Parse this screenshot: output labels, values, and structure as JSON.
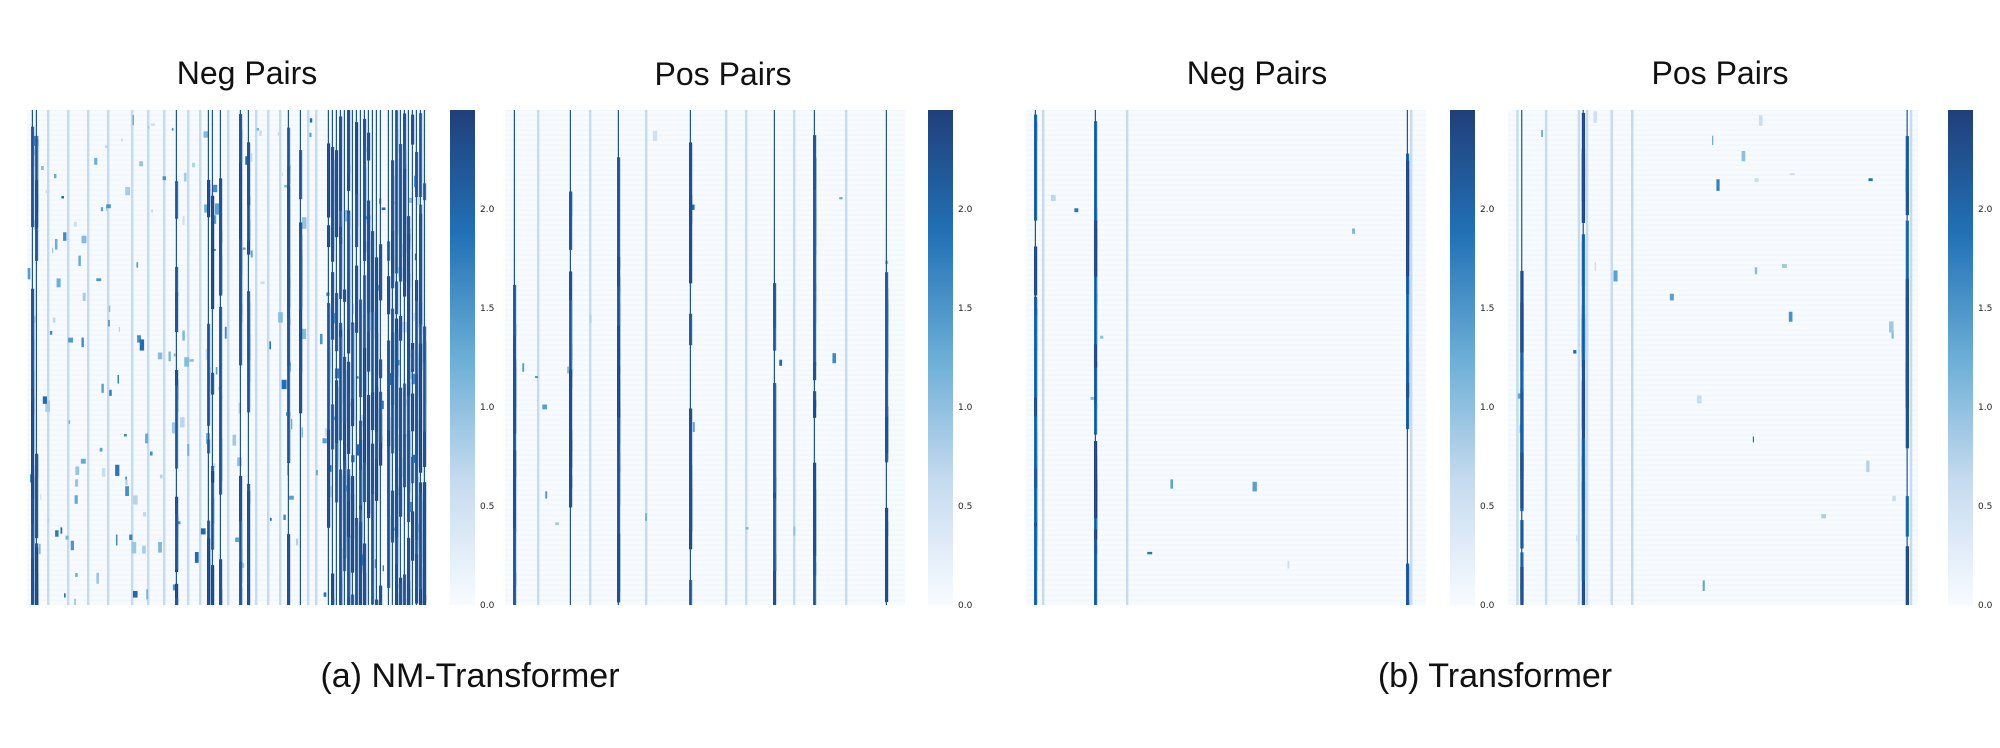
{
  "groups": [
    {
      "caption": "(a) NM-Transformer"
    },
    {
      "caption": "(b) Transformer"
    }
  ],
  "chart_data": [
    {
      "type": "heatmap",
      "title": "Neg Pairs",
      "group": "(a) NM-Transformer",
      "colormap": [
        "#f7fbff",
        "#c6dbef",
        "#6baed6",
        "#2171b5",
        "#213f7a"
      ],
      "colorbar": {
        "range": [
          0.0,
          2.5
        ],
        "ticks": [
          "0.0",
          "0.5",
          "1.0",
          "1.5",
          "2.0"
        ]
      },
      "columns": 100,
      "strong_columns": [
        1,
        2,
        37,
        45,
        46,
        48,
        53,
        55,
        65,
        68,
        75,
        76,
        77,
        78,
        79,
        80,
        81,
        82,
        83,
        84,
        85,
        86,
        87,
        88,
        90,
        91,
        92,
        93,
        94,
        95,
        96,
        97,
        98,
        99
      ],
      "light_columns": [
        5,
        10,
        15,
        20,
        26,
        30,
        34,
        40,
        43,
        50,
        57,
        60,
        63,
        70,
        72
      ],
      "noise": 0.22
    },
    {
      "type": "heatmap",
      "title": "Pos Pairs",
      "group": "(a) NM-Transformer",
      "colormap": [
        "#f7fbff",
        "#c6dbef",
        "#6baed6",
        "#2171b5",
        "#213f7a"
      ],
      "colorbar": {
        "range": [
          0.0,
          2.5
        ],
        "ticks": [
          "0.0",
          "0.5",
          "1.0",
          "1.5",
          "2.0"
        ]
      },
      "columns": 100,
      "strong_columns": [
        2,
        16,
        28,
        46,
        67,
        77,
        95
      ],
      "light_columns": [
        8,
        21,
        35,
        55,
        60,
        72,
        85
      ],
      "noise": 0.02
    },
    {
      "type": "heatmap",
      "title": "Neg Pairs",
      "group": "(b) Transformer",
      "colormap": [
        "#f7fbff",
        "#c6dbef",
        "#6baed6",
        "#2171b5",
        "#213f7a"
      ],
      "colorbar": {
        "range": [
          0.0,
          2.5
        ],
        "ticks": [
          "0.0",
          "0.5",
          "1.0",
          "1.5",
          "2.0"
        ]
      },
      "columns": 100,
      "strong_columns": [
        2,
        17,
        95
      ],
      "light_columns": [
        4,
        25,
        96
      ],
      "noise": 0.01
    },
    {
      "type": "heatmap",
      "title": "Pos Pairs",
      "group": "(b) Transformer",
      "colormap": [
        "#f7fbff",
        "#c6dbef",
        "#6baed6",
        "#2171b5",
        "#213f7a"
      ],
      "colorbar": {
        "range": [
          0.0,
          2.5
        ],
        "ticks": [
          "0.0",
          "0.5",
          "1.0",
          "1.5",
          "2.0"
        ]
      },
      "columns": 100,
      "strong_columns": [
        3,
        18,
        97
      ],
      "light_columns": [
        2,
        9,
        17,
        19,
        25,
        30,
        98
      ],
      "noise": 0.03
    }
  ]
}
